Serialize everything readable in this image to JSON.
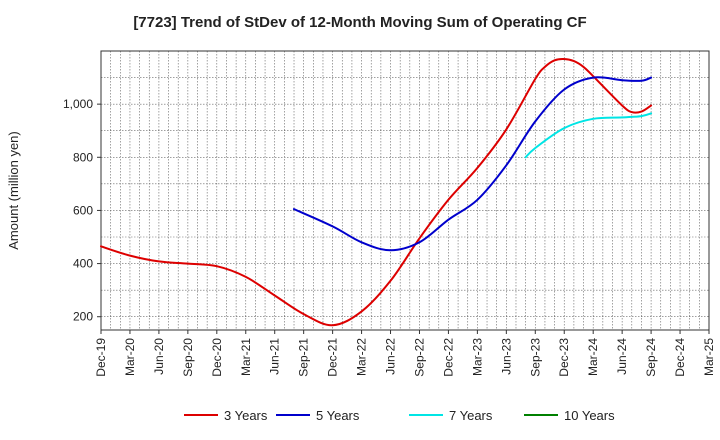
{
  "chart_data": {
    "type": "line",
    "title": "[7723]  Trend of StDev of 12-Month Moving Sum of Operating CF",
    "ylabel": "Amount (million yen)",
    "xlabel": "",
    "ylim": [
      150,
      1200
    ],
    "yticks": [
      200,
      400,
      600,
      800,
      1000
    ],
    "x_ticks": [
      "Dec-19",
      "Mar-20",
      "Jun-20",
      "Sep-20",
      "Dec-20",
      "Mar-21",
      "Jun-21",
      "Sep-21",
      "Dec-21",
      "Mar-22",
      "Jun-22",
      "Sep-22",
      "Dec-22",
      "Mar-23",
      "Jun-23",
      "Sep-23",
      "Dec-23",
      "Mar-24",
      "Jun-24",
      "Sep-24",
      "Dec-24",
      "Mar-25"
    ],
    "grid": true,
    "legend_position": "bottom",
    "series": [
      {
        "name": "3 Years",
        "color": "#dd0000",
        "points": [
          [
            "Dec-19",
            465
          ],
          [
            "Mar-20",
            430
          ],
          [
            "Jun-20",
            408
          ],
          [
            "Sep-20",
            400
          ],
          [
            "Dec-20",
            390
          ],
          [
            "Mar-21",
            350
          ],
          [
            "Jun-21",
            280
          ],
          [
            "Sep-21",
            210
          ],
          [
            "Dec-21",
            168
          ],
          [
            "Mar-22",
            220
          ],
          [
            "Jun-22",
            335
          ],
          [
            "Sep-22",
            495
          ],
          [
            "Dec-22",
            640
          ],
          [
            "Mar-23",
            760
          ],
          [
            "Jun-23",
            905
          ],
          [
            "Sep-23",
            1095
          ],
          [
            "Oct-23",
            1140
          ],
          [
            "Nov-23",
            1165
          ],
          [
            "Dec-23",
            1170
          ],
          [
            "Jan-24",
            1162
          ],
          [
            "Feb-24",
            1140
          ],
          [
            "Mar-24",
            1105
          ],
          [
            "Jun-24",
            995
          ],
          [
            "Jul-24",
            970
          ],
          [
            "Aug-24",
            972
          ],
          [
            "Sep-24",
            995
          ]
        ]
      },
      {
        "name": "5 Years",
        "color": "#0000cc",
        "points": [
          [
            "Aug-21",
            605
          ],
          [
            "Dec-21",
            540
          ],
          [
            "Mar-22",
            480
          ],
          [
            "Jun-22",
            450
          ],
          [
            "Sep-22",
            480
          ],
          [
            "Dec-22",
            565
          ],
          [
            "Mar-23",
            640
          ],
          [
            "Jun-23",
            770
          ],
          [
            "Sep-23",
            935
          ],
          [
            "Dec-23",
            1055
          ],
          [
            "Mar-24",
            1100
          ],
          [
            "Jun-24",
            1090
          ],
          [
            "Aug-24",
            1088
          ],
          [
            "Sep-24",
            1100
          ]
        ]
      },
      {
        "name": "7 Years",
        "color": "#00e5e5",
        "points": [
          [
            "Aug-23",
            800
          ],
          [
            "Sep-23",
            835
          ],
          [
            "Dec-23",
            910
          ],
          [
            "Mar-24",
            945
          ],
          [
            "Jun-24",
            950
          ],
          [
            "Aug-24",
            955
          ],
          [
            "Sep-24",
            965
          ]
        ]
      },
      {
        "name": "10 Years",
        "color": "#008000",
        "points": []
      }
    ]
  }
}
